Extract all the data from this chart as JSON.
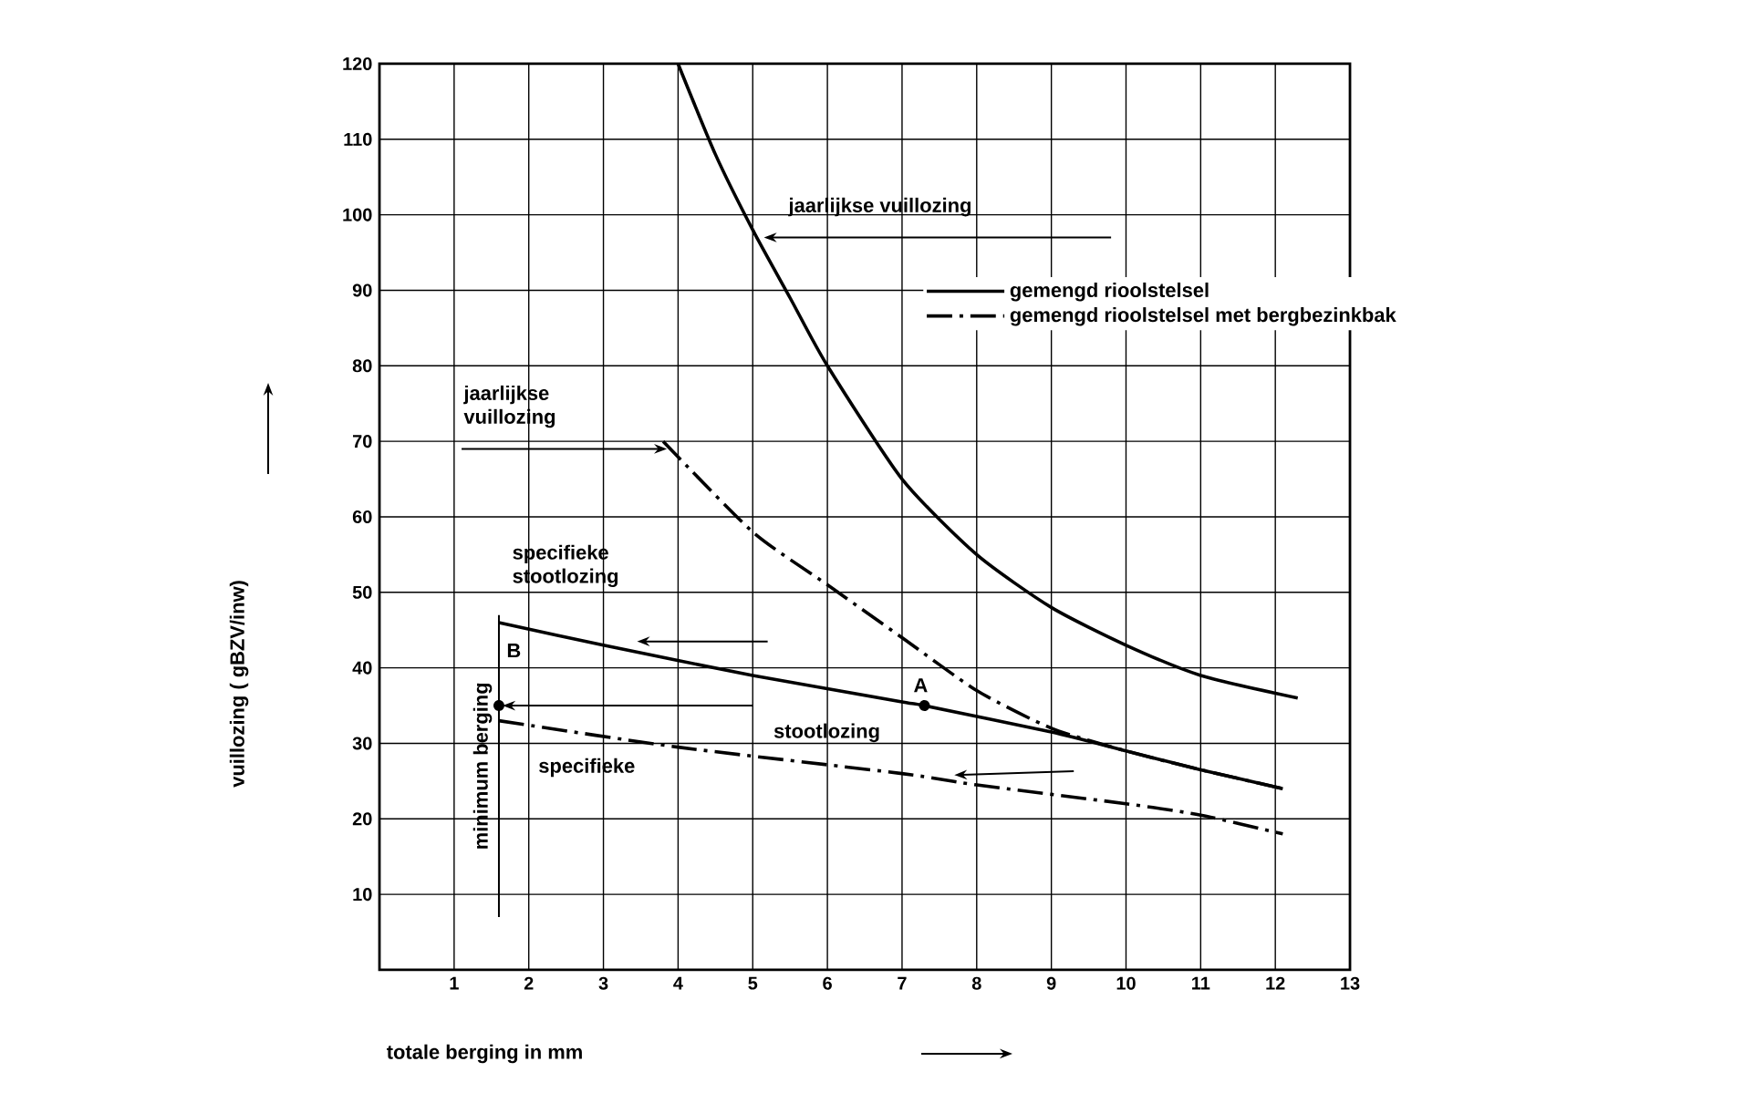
{
  "chart_data": {
    "type": "line",
    "xlabel": "totale berging in mm",
    "ylabel": "vuillozing ( gBZV/inw)",
    "xlim": [
      0,
      13
    ],
    "ylim": [
      0,
      120
    ],
    "xticks": [
      1,
      2,
      3,
      4,
      5,
      6,
      7,
      8,
      9,
      10,
      11,
      12,
      13
    ],
    "yticks": [
      10,
      20,
      30,
      40,
      50,
      60,
      70,
      80,
      90,
      100,
      110,
      120
    ],
    "grid": true,
    "legend": "top right",
    "marker": "none",
    "series": [
      {
        "name": "gemengd rioolstelsel",
        "color": "#000000",
        "line_style": "solid",
        "x": [
          4.0,
          4.5,
          5,
          5.5,
          6,
          7,
          8,
          9,
          10,
          11,
          12.3
        ],
        "values": [
          120,
          108,
          98,
          89,
          80,
          65,
          55,
          48,
          43,
          39,
          36
        ]
      },
      {
        "name": "gemengd rioolstelsel met bergbezinkbak",
        "color": "#000000",
        "line_style": "dashdot",
        "x": [
          3.8,
          5,
          6,
          7,
          8,
          9,
          10,
          11,
          12.1
        ],
        "values": [
          70,
          58,
          51,
          44,
          37,
          32,
          29,
          26.5,
          24
        ]
      },
      {
        "color": "#000000",
        "line_style": "solid",
        "x": [
          1.6,
          3,
          5,
          7,
          7.3,
          9,
          10,
          11,
          12.1
        ],
        "values": [
          46,
          43,
          39,
          35.5,
          35,
          31.5,
          29,
          26.5,
          24
        ]
      },
      {
        "color": "#000000",
        "line_style": "dashdot",
        "x": [
          1.6,
          4,
          7,
          8,
          10,
          11,
          12.1
        ],
        "values": [
          33,
          29.5,
          26,
          24.5,
          22,
          20.5,
          18
        ]
      }
    ],
    "ref_lines": [
      {
        "axis": "x",
        "value": 1.6,
        "label": "minimum berging"
      }
    ],
    "annotations": [
      {
        "text": "jaarlijkse vuillozing",
        "x": 5.1,
        "y": 97
      },
      {
        "text": "jaarlijkse vuillozing",
        "x": 3.8,
        "y": 69
      },
      {
        "text": "specifieke stootlozing",
        "x": 3.4,
        "y": 43.5
      },
      "stootlozing",
      "specifieke",
      {
        "text": "A",
        "x": 7.3,
        "y": 35
      },
      {
        "text": "B",
        "x": 1.6,
        "y": 35
      }
    ]
  }
}
